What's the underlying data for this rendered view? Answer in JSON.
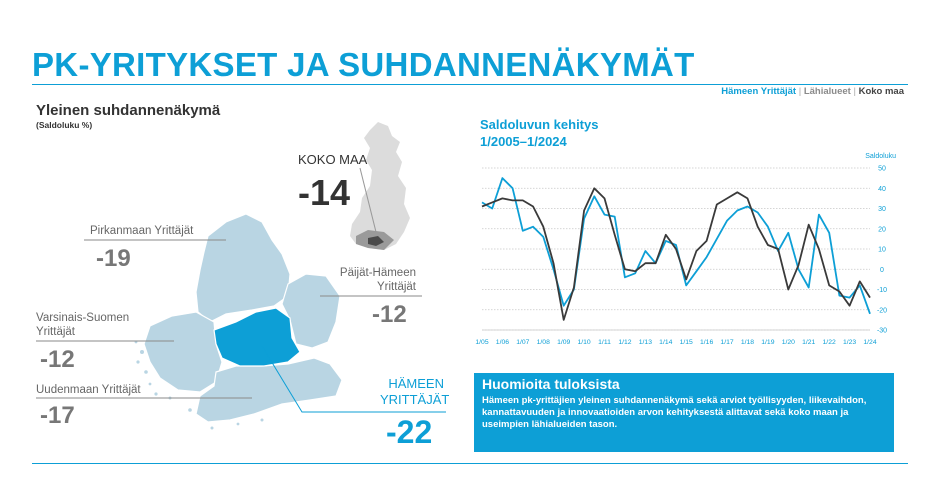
{
  "page": {
    "title": "PK-YRITYKSET JA SUHDANNENÄKYMÄT",
    "legend": {
      "hameen": "Hämeen Yrittäjät",
      "sep": "|",
      "lahialueet": "Lähialueet",
      "koko_maa": "Koko maa"
    }
  },
  "colors": {
    "accent": "#0d9fd6",
    "map_fill": "#b9d5e3",
    "map_highlight": "#0d9fd6",
    "dark_series": "#3a3a3a"
  },
  "left": {
    "heading": "Yleinen suhdannenäkymä",
    "subheading": "(Saldoluku %)",
    "koko_maa": {
      "label": "KOKO MAA",
      "value": "-14"
    },
    "regions": [
      {
        "name": "Pirkanmaan Yrittäjät",
        "value": "-19"
      },
      {
        "name": "Päijät-Hämeen Yrittäjät",
        "value": "-12"
      },
      {
        "name": "Varsinais-Suomen Yrittäjät",
        "value": "-12"
      },
      {
        "name": "Uudenmaan Yrittäjät",
        "value": "-17"
      }
    ],
    "hameen": {
      "label": "HÄMEEN YRITTÄJÄT",
      "value": "-22"
    }
  },
  "chart_data": {
    "type": "line",
    "title": "Saldoluvun kehitys",
    "subtitle": "1/2005–1/2024",
    "ylabel": "Saldoluku",
    "ylim": [
      -30,
      50
    ],
    "yticks": [
      50,
      40,
      30,
      20,
      10,
      0,
      -10,
      -20,
      -30
    ],
    "grid": true,
    "x_ticks": [
      "1/05",
      "1/06",
      "1/07",
      "1/08",
      "1/09",
      "1/10",
      "1/11",
      "1/12",
      "1/13",
      "1/14",
      "1/15",
      "1/16",
      "1/17",
      "1/18",
      "1/19",
      "1/20",
      "1/21",
      "1/22",
      "1/23",
      "1/24"
    ],
    "series": [
      {
        "name": "Hämeen Yrittäjät",
        "color": "#0d9fd6",
        "x": [
          2005.0,
          2005.5,
          2006.0,
          2006.5,
          2007.0,
          2007.5,
          2008.0,
          2008.5,
          2009.0,
          2009.5,
          2010.0,
          2010.5,
          2011.0,
          2011.5,
          2012.0,
          2012.5,
          2013.0,
          2013.5,
          2014.0,
          2014.5,
          2015.0,
          2015.5,
          2016.0,
          2016.5,
          2017.0,
          2017.5,
          2018.0,
          2018.5,
          2019.0,
          2019.5,
          2020.0,
          2020.5,
          2021.0,
          2021.5,
          2022.0,
          2022.5,
          2023.0,
          2023.5,
          2024.0
        ],
        "y": [
          33,
          30,
          45,
          40,
          19,
          21,
          16,
          0,
          -18,
          -10,
          25,
          36,
          27,
          26,
          -4,
          -2,
          9,
          3,
          14,
          12,
          -8,
          -1,
          6,
          15,
          24,
          29,
          31,
          28,
          21,
          9,
          18,
          0,
          -9,
          27,
          18,
          -13,
          -14,
          -8,
          -22
        ]
      },
      {
        "name": "Koko maa",
        "color": "#3a3a3a",
        "x": [
          2005.0,
          2005.5,
          2006.0,
          2006.5,
          2007.0,
          2007.5,
          2008.0,
          2008.5,
          2009.0,
          2009.5,
          2010.0,
          2010.5,
          2011.0,
          2011.5,
          2012.0,
          2012.5,
          2013.0,
          2013.5,
          2014.0,
          2014.5,
          2015.0,
          2015.5,
          2016.0,
          2016.5,
          2017.0,
          2017.5,
          2018.0,
          2018.5,
          2019.0,
          2019.5,
          2020.0,
          2020.5,
          2021.0,
          2021.5,
          2022.0,
          2022.5,
          2023.0,
          2023.5,
          2024.0
        ],
        "y": [
          31,
          33,
          35,
          34,
          34,
          31,
          21,
          3,
          -25,
          -9,
          29,
          40,
          35,
          17,
          0,
          -1,
          3,
          3,
          17,
          10,
          -5,
          9,
          14,
          32,
          35,
          38,
          35,
          21,
          12,
          10,
          -10,
          2,
          22,
          10,
          -8,
          -11,
          -18,
          -6,
          -14
        ]
      }
    ]
  },
  "note": {
    "title": "Huomioita tuloksista",
    "text": "Hämeen pk-yrittäjien yleinen suhdannenäkymä sekä arviot työllisyyden, liikevaihdon, kannattavuuden ja innovaatioiden arvon kehityksestä alittavat sekä koko maan ja useimpien lähialueiden tason."
  }
}
